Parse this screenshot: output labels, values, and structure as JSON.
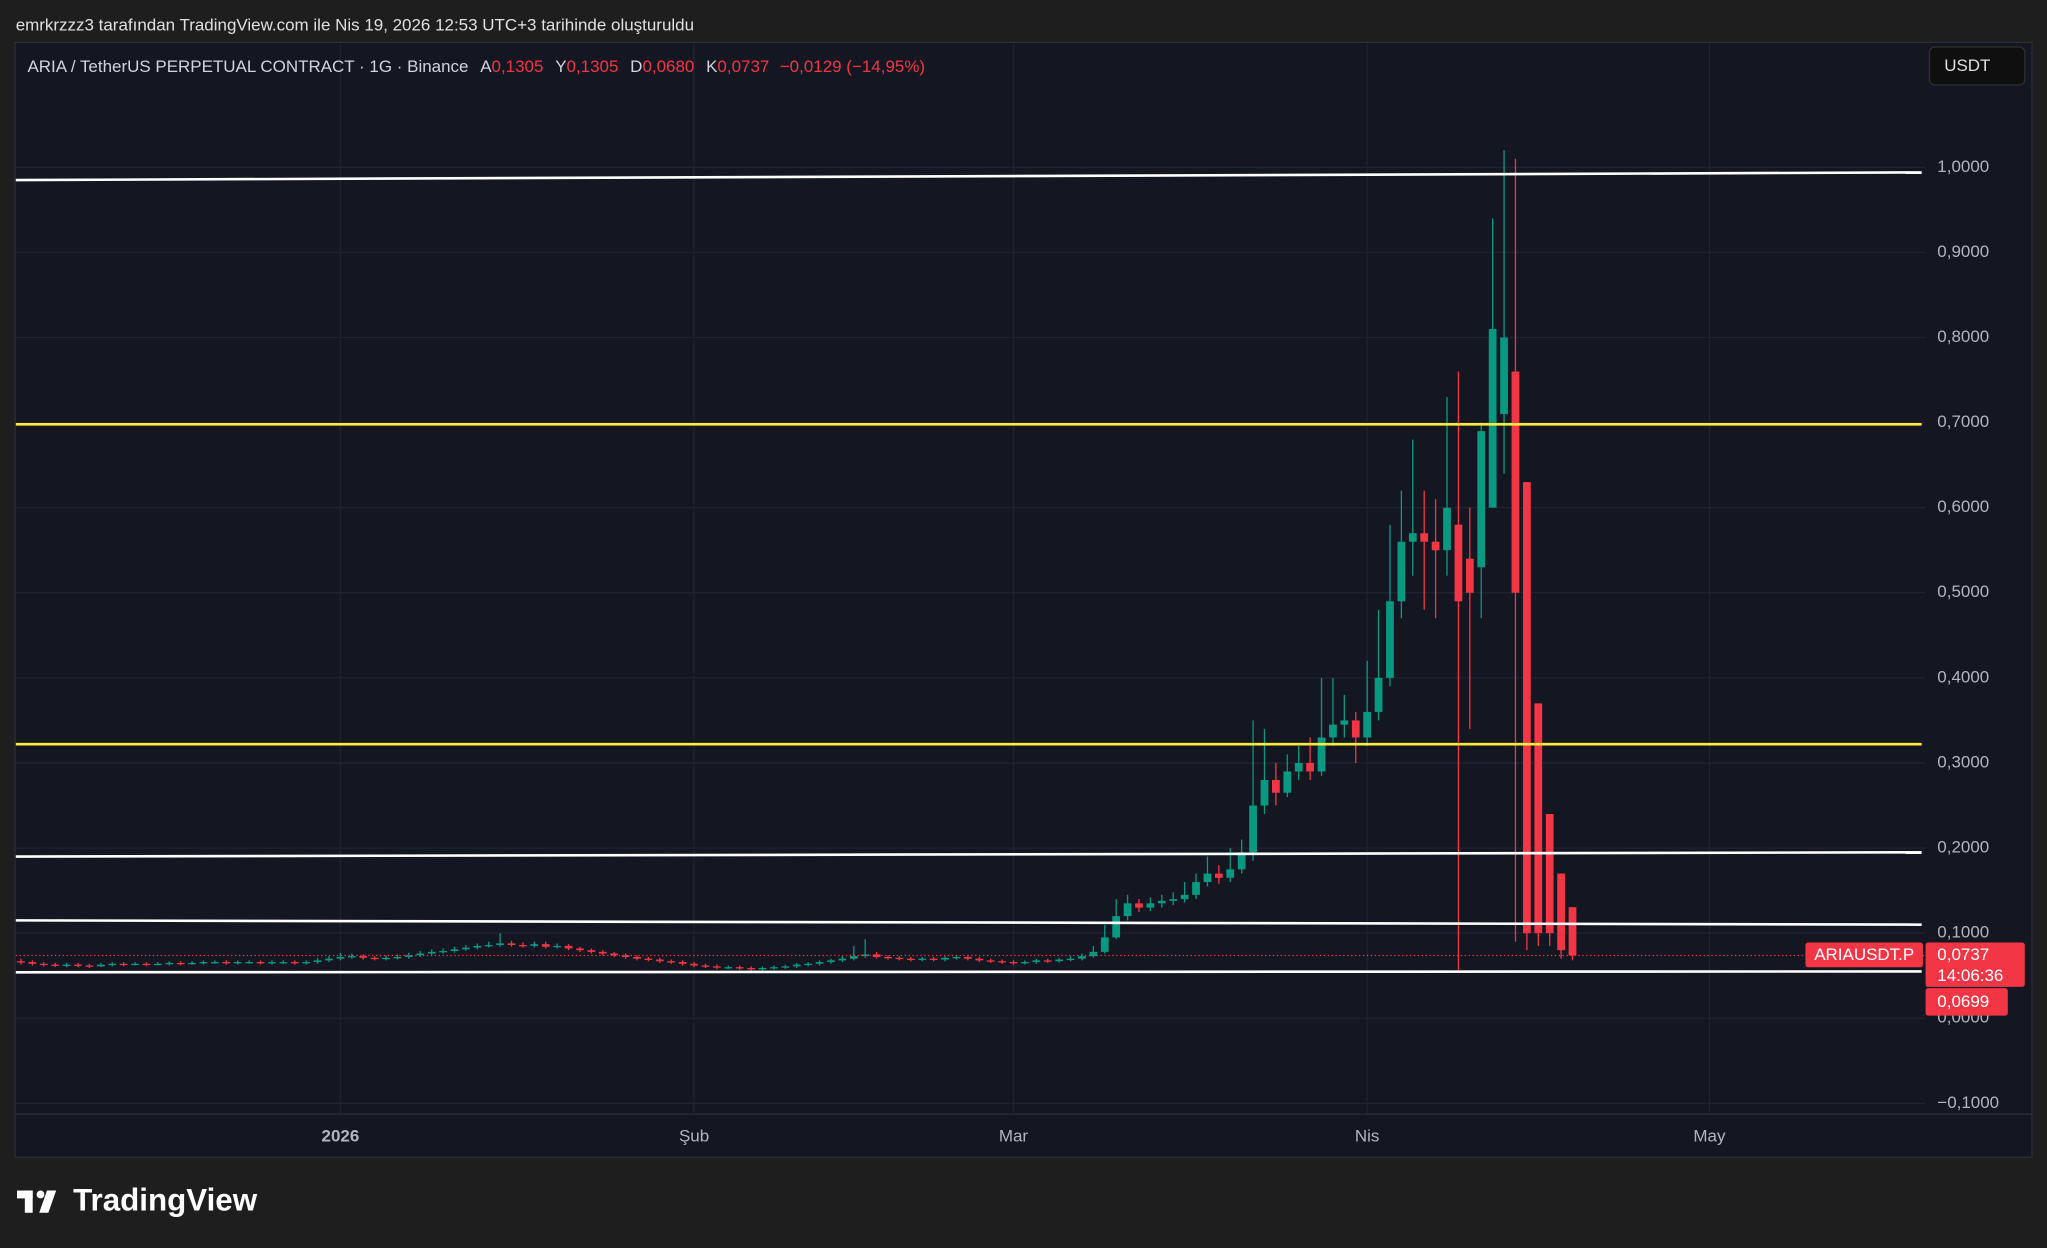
{
  "created_by": "emrkrzzz3 tarafından TradingView.com ile Nis 19, 2026 12:53 UTC+3 tarihinde oluşturuldu",
  "logo": "TradingView",
  "currency": "USDT",
  "chart_data": {
    "type": "candlestick",
    "title": "ARIA / TetherUS PERPETUAL CONTRACT · 1G · Binance",
    "legend": [
      {
        "key": "A",
        "value": 0.1305,
        "label": "0,1305"
      },
      {
        "key": "Y",
        "value": 0.1305,
        "label": "0,1305"
      },
      {
        "key": "D",
        "value": 0.068,
        "label": "0,0680"
      },
      {
        "key": "K",
        "value": 0.0737,
        "label": "0,0737"
      }
    ],
    "change": {
      "value": -0.0129,
      "label": "−0,0129 (−14,95%)"
    },
    "symbol": "ARIAUSDT.P",
    "last_price": {
      "value": 0.0737,
      "label": "0,0737"
    },
    "countdown": "14:06:36",
    "price_marker": {
      "value": 0.0699,
      "label": "0,0699"
    },
    "up_color": "#089981",
    "down_color": "#f23645",
    "grid": true,
    "xlim": [
      -0.46,
      176.1
    ],
    "xticks": [
      {
        "value": 28,
        "label": "2026"
      },
      {
        "value": 59,
        "label": "Şub"
      },
      {
        "value": 87,
        "label": "Mar"
      },
      {
        "value": 118,
        "label": "Nis"
      },
      {
        "value": 148,
        "label": "May"
      }
    ],
    "ylim": [
      -0.112,
      1.146
    ],
    "yticks": [
      {
        "value": -0.1,
        "label": "−0,1000"
      },
      {
        "value": 0,
        "label": "0,0000"
      },
      {
        "value": 0.1,
        "label": "0,1000"
      },
      {
        "value": 0.2,
        "label": "0,2000"
      },
      {
        "value": 0.3,
        "label": "0,3000"
      },
      {
        "value": 0.4,
        "label": "0,4000"
      },
      {
        "value": 0.5,
        "label": "0,5000"
      },
      {
        "value": 0.6,
        "label": "0,6000"
      },
      {
        "value": 0.7,
        "label": "0,7000"
      },
      {
        "value": 0.8,
        "label": "0,8000"
      },
      {
        "value": 0.9,
        "label": "0,9000"
      },
      {
        "value": 1,
        "label": "1,0000"
      }
    ],
    "lines": [
      {
        "color": "#ffffff",
        "values": [
          0.985,
          0.994
        ]
      },
      {
        "color": "#ffeb3b",
        "values": [
          0.698,
          0.698
        ]
      },
      {
        "color": "#ffeb3b",
        "values": [
          0.322,
          0.322
        ]
      },
      {
        "color": "#ffffff",
        "values": [
          0.19,
          0.195
        ]
      },
      {
        "color": "#ffffff",
        "values": [
          0.115,
          0.11
        ]
      },
      {
        "color": "#ffffff",
        "values": [
          0.054,
          0.055
        ]
      }
    ],
    "ohlc": [
      [
        0.067,
        0.07,
        0.063,
        0.066
      ],
      [
        0.066,
        0.068,
        0.062,
        0.064
      ],
      [
        0.064,
        0.066,
        0.061,
        0.063
      ],
      [
        0.063,
        0.065,
        0.06,
        0.062
      ],
      [
        0.062,
        0.065,
        0.06,
        0.063
      ],
      [
        0.063,
        0.065,
        0.06,
        0.062
      ],
      [
        0.062,
        0.064,
        0.059,
        0.061
      ],
      [
        0.061,
        0.065,
        0.06,
        0.063
      ],
      [
        0.063,
        0.066,
        0.061,
        0.064
      ],
      [
        0.064,
        0.066,
        0.061,
        0.063
      ],
      [
        0.063,
        0.066,
        0.062,
        0.064
      ],
      [
        0.064,
        0.066,
        0.061,
        0.063
      ],
      [
        0.063,
        0.066,
        0.062,
        0.064
      ],
      [
        0.064,
        0.067,
        0.062,
        0.065
      ],
      [
        0.065,
        0.067,
        0.062,
        0.064
      ],
      [
        0.064,
        0.067,
        0.063,
        0.065
      ],
      [
        0.065,
        0.068,
        0.063,
        0.066
      ],
      [
        0.066,
        0.068,
        0.064,
        0.066
      ],
      [
        0.066,
        0.068,
        0.063,
        0.065
      ],
      [
        0.065,
        0.068,
        0.063,
        0.066
      ],
      [
        0.066,
        0.068,
        0.064,
        0.066
      ],
      [
        0.066,
        0.068,
        0.063,
        0.065
      ],
      [
        0.065,
        0.068,
        0.063,
        0.066
      ],
      [
        0.066,
        0.068,
        0.064,
        0.066
      ],
      [
        0.066,
        0.068,
        0.063,
        0.065
      ],
      [
        0.065,
        0.068,
        0.063,
        0.066
      ],
      [
        0.066,
        0.071,
        0.064,
        0.068
      ],
      [
        0.068,
        0.073,
        0.066,
        0.07
      ],
      [
        0.07,
        0.077,
        0.068,
        0.072
      ],
      [
        0.072,
        0.076,
        0.07,
        0.073
      ],
      [
        0.073,
        0.075,
        0.069,
        0.071
      ],
      [
        0.071,
        0.073,
        0.068,
        0.07
      ],
      [
        0.07,
        0.074,
        0.068,
        0.071
      ],
      [
        0.071,
        0.075,
        0.069,
        0.072
      ],
      [
        0.072,
        0.077,
        0.07,
        0.074
      ],
      [
        0.074,
        0.079,
        0.072,
        0.076
      ],
      [
        0.076,
        0.081,
        0.074,
        0.078
      ],
      [
        0.078,
        0.082,
        0.076,
        0.079
      ],
      [
        0.079,
        0.084,
        0.077,
        0.081
      ],
      [
        0.081,
        0.086,
        0.079,
        0.083
      ],
      [
        0.083,
        0.088,
        0.081,
        0.085
      ],
      [
        0.085,
        0.09,
        0.083,
        0.086
      ],
      [
        0.086,
        0.1,
        0.084,
        0.088
      ],
      [
        0.088,
        0.091,
        0.084,
        0.086
      ],
      [
        0.086,
        0.089,
        0.083,
        0.085
      ],
      [
        0.085,
        0.09,
        0.083,
        0.087
      ],
      [
        0.087,
        0.09,
        0.082,
        0.084
      ],
      [
        0.084,
        0.088,
        0.082,
        0.085
      ],
      [
        0.085,
        0.087,
        0.08,
        0.082
      ],
      [
        0.082,
        0.084,
        0.078,
        0.08
      ],
      [
        0.08,
        0.082,
        0.076,
        0.078
      ],
      [
        0.078,
        0.08,
        0.074,
        0.076
      ],
      [
        0.076,
        0.078,
        0.072,
        0.074
      ],
      [
        0.074,
        0.076,
        0.07,
        0.072
      ],
      [
        0.072,
        0.074,
        0.068,
        0.07
      ],
      [
        0.07,
        0.072,
        0.067,
        0.069
      ],
      [
        0.069,
        0.071,
        0.065,
        0.067
      ],
      [
        0.067,
        0.069,
        0.064,
        0.066
      ],
      [
        0.066,
        0.068,
        0.062,
        0.064
      ],
      [
        0.064,
        0.066,
        0.06,
        0.062
      ],
      [
        0.062,
        0.064,
        0.059,
        0.061
      ],
      [
        0.061,
        0.063,
        0.058,
        0.06
      ],
      [
        0.06,
        0.062,
        0.058,
        0.06
      ],
      [
        0.06,
        0.062,
        0.057,
        0.059
      ],
      [
        0.059,
        0.061,
        0.056,
        0.058
      ],
      [
        0.058,
        0.061,
        0.056,
        0.059
      ],
      [
        0.059,
        0.062,
        0.057,
        0.06
      ],
      [
        0.06,
        0.063,
        0.058,
        0.061
      ],
      [
        0.061,
        0.065,
        0.059,
        0.063
      ],
      [
        0.063,
        0.066,
        0.061,
        0.064
      ],
      [
        0.064,
        0.068,
        0.062,
        0.066
      ],
      [
        0.066,
        0.07,
        0.064,
        0.068
      ],
      [
        0.068,
        0.073,
        0.066,
        0.07
      ],
      [
        0.07,
        0.085,
        0.068,
        0.073
      ],
      [
        0.073,
        0.093,
        0.071,
        0.075
      ],
      [
        0.075,
        0.078,
        0.07,
        0.072
      ],
      [
        0.072,
        0.074,
        0.069,
        0.071
      ],
      [
        0.071,
        0.073,
        0.068,
        0.07
      ],
      [
        0.07,
        0.072,
        0.067,
        0.069
      ],
      [
        0.069,
        0.072,
        0.067,
        0.07
      ],
      [
        0.07,
        0.072,
        0.067,
        0.069
      ],
      [
        0.069,
        0.073,
        0.067,
        0.071
      ],
      [
        0.071,
        0.074,
        0.069,
        0.072
      ],
      [
        0.072,
        0.074,
        0.068,
        0.07
      ],
      [
        0.07,
        0.072,
        0.066,
        0.068
      ],
      [
        0.068,
        0.07,
        0.065,
        0.067
      ],
      [
        0.067,
        0.069,
        0.064,
        0.066
      ],
      [
        0.066,
        0.068,
        0.063,
        0.065
      ],
      [
        0.065,
        0.068,
        0.063,
        0.066
      ],
      [
        0.066,
        0.07,
        0.064,
        0.068
      ],
      [
        0.068,
        0.07,
        0.065,
        0.067
      ],
      [
        0.067,
        0.071,
        0.065,
        0.069
      ],
      [
        0.069,
        0.073,
        0.067,
        0.07
      ],
      [
        0.07,
        0.076,
        0.068,
        0.073
      ],
      [
        0.073,
        0.085,
        0.071,
        0.078
      ],
      [
        0.078,
        0.11,
        0.076,
        0.095
      ],
      [
        0.095,
        0.14,
        0.093,
        0.12
      ],
      [
        0.12,
        0.145,
        0.115,
        0.135
      ],
      [
        0.135,
        0.14,
        0.125,
        0.13
      ],
      [
        0.13,
        0.142,
        0.126,
        0.135
      ],
      [
        0.135,
        0.145,
        0.13,
        0.138
      ],
      [
        0.138,
        0.148,
        0.133,
        0.14
      ],
      [
        0.14,
        0.16,
        0.136,
        0.145
      ],
      [
        0.145,
        0.17,
        0.14,
        0.16
      ],
      [
        0.16,
        0.19,
        0.155,
        0.17
      ],
      [
        0.17,
        0.18,
        0.158,
        0.165
      ],
      [
        0.165,
        0.2,
        0.16,
        0.175
      ],
      [
        0.175,
        0.21,
        0.17,
        0.195
      ],
      [
        0.195,
        0.35,
        0.185,
        0.25
      ],
      [
        0.25,
        0.34,
        0.24,
        0.28
      ],
      [
        0.28,
        0.3,
        0.25,
        0.265
      ],
      [
        0.265,
        0.31,
        0.26,
        0.29
      ],
      [
        0.29,
        0.32,
        0.28,
        0.3
      ],
      [
        0.3,
        0.33,
        0.28,
        0.29
      ],
      [
        0.29,
        0.4,
        0.285,
        0.33
      ],
      [
        0.33,
        0.4,
        0.32,
        0.345
      ],
      [
        0.345,
        0.38,
        0.33,
        0.35
      ],
      [
        0.35,
        0.36,
        0.3,
        0.33
      ],
      [
        0.33,
        0.42,
        0.32,
        0.36
      ],
      [
        0.36,
        0.48,
        0.35,
        0.4
      ],
      [
        0.4,
        0.58,
        0.39,
        0.49
      ],
      [
        0.49,
        0.62,
        0.47,
        0.56
      ],
      [
        0.56,
        0.68,
        0.52,
        0.57
      ],
      [
        0.57,
        0.62,
        0.48,
        0.56
      ],
      [
        0.56,
        0.61,
        0.47,
        0.55
      ],
      [
        0.55,
        0.73,
        0.52,
        0.6
      ],
      [
        0.58,
        0.76,
        0.057,
        0.49
      ],
      [
        0.54,
        0.6,
        0.34,
        0.5
      ],
      [
        0.53,
        0.7,
        0.47,
        0.69
      ],
      [
        0.6,
        0.94,
        0.6,
        0.81
      ],
      [
        0.71,
        1.02,
        0.64,
        0.8
      ],
      [
        0.76,
        1.01,
        0.09,
        0.5
      ],
      [
        0.63,
        0.63,
        0.08,
        0.1
      ],
      [
        0.37,
        0.37,
        0.085,
        0.1
      ],
      [
        0.24,
        0.24,
        0.085,
        0.1
      ],
      [
        0.17,
        0.17,
        0.07,
        0.08
      ],
      [
        0.1305,
        0.1305,
        0.068,
        0.0737
      ]
    ]
  }
}
